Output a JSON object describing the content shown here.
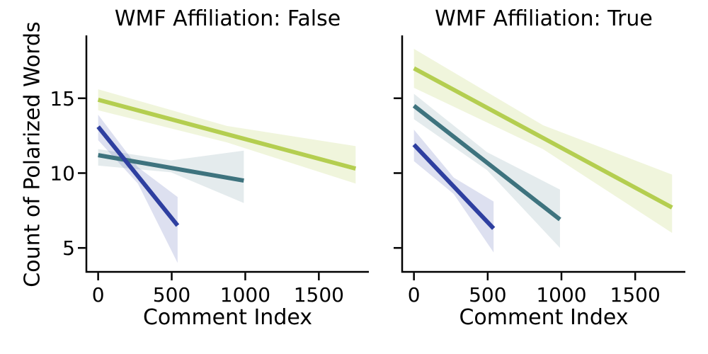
{
  "figure": {
    "background": "#ffffff",
    "text_color": "#000000",
    "spine_color": "#000000"
  },
  "chart_data": [
    {
      "type": "line",
      "title": "WMF Affiliation: False",
      "xlabel": "Comment Index",
      "ylabel": "Count of Polarized Words",
      "xlim": [
        -80,
        1840
      ],
      "ylim": [
        3.4,
        19.2
      ],
      "xticks": [
        0,
        500,
        1000,
        1500
      ],
      "xticklabels": [
        "0",
        "500",
        "1000",
        "1500"
      ],
      "yticks": [
        5,
        10,
        15
      ],
      "yticklabels": [
        "5",
        "10",
        "15"
      ],
      "grid": false,
      "legend": null,
      "series": [
        {
          "name": "green-group",
          "color": "#b4ce50",
          "band_opacity": 0.2,
          "x": [
            0,
            1750
          ],
          "y": [
            14.9,
            10.3
          ],
          "band": {
            "x": [
              0,
              875,
              1750
            ],
            "top": [
              15.6,
              13.15,
              11.8
            ],
            "bottom": [
              14.2,
              12.05,
              9.3
            ]
          }
        },
        {
          "name": "teal-group",
          "color": "#3e737e",
          "band_opacity": 0.14,
          "x": [
            0,
            990
          ],
          "y": [
            11.2,
            9.5
          ],
          "band": {
            "x": [
              0,
              495,
              990
            ],
            "top": [
              11.6,
              10.85,
              11.5
            ],
            "bottom": [
              10.5,
              10.05,
              8.0
            ]
          }
        },
        {
          "name": "blue-group",
          "color": "#2e3fa0",
          "band_opacity": 0.16,
          "x": [
            0,
            540
          ],
          "y": [
            13.1,
            6.5
          ],
          "band": {
            "x": [
              0,
              270,
              540
            ],
            "top": [
              13.9,
              10.4,
              8.4
            ],
            "bottom": [
              12.2,
              9.3,
              4.0
            ]
          }
        }
      ]
    },
    {
      "type": "line",
      "title": "WMF Affiliation: True",
      "xlabel": "Comment Index",
      "ylabel": "",
      "xlim": [
        -80,
        1840
      ],
      "ylim": [
        3.4,
        19.2
      ],
      "xticks": [
        0,
        500,
        1000,
        1500
      ],
      "xticklabels": [
        "0",
        "500",
        "1000",
        "1500"
      ],
      "yticks": [
        5,
        10,
        15
      ],
      "yticklabels": [],
      "grid": false,
      "legend": null,
      "series": [
        {
          "name": "green-group",
          "color": "#b4ce50",
          "band_opacity": 0.2,
          "x": [
            0,
            1750
          ],
          "y": [
            17.0,
            7.7
          ],
          "band": {
            "x": [
              0,
              875,
              1750
            ],
            "top": [
              18.3,
              13.2,
              9.9
            ],
            "bottom": [
              15.7,
              11.6,
              6.0
            ]
          }
        },
        {
          "name": "teal-group",
          "color": "#3e737e",
          "band_opacity": 0.14,
          "x": [
            0,
            990
          ],
          "y": [
            14.5,
            6.9
          ],
          "band": {
            "x": [
              0,
              495,
              990
            ],
            "top": [
              15.3,
              11.4,
              8.9
            ],
            "bottom": [
              13.6,
              10.2,
              5.0
            ]
          }
        },
        {
          "name": "blue-group",
          "color": "#2e3fa0",
          "band_opacity": 0.16,
          "x": [
            0,
            540
          ],
          "y": [
            11.9,
            6.3
          ],
          "band": {
            "x": [
              0,
              270,
              540
            ],
            "top": [
              12.9,
              9.7,
              8.1
            ],
            "bottom": [
              10.8,
              8.6,
              4.7
            ]
          }
        }
      ]
    }
  ]
}
